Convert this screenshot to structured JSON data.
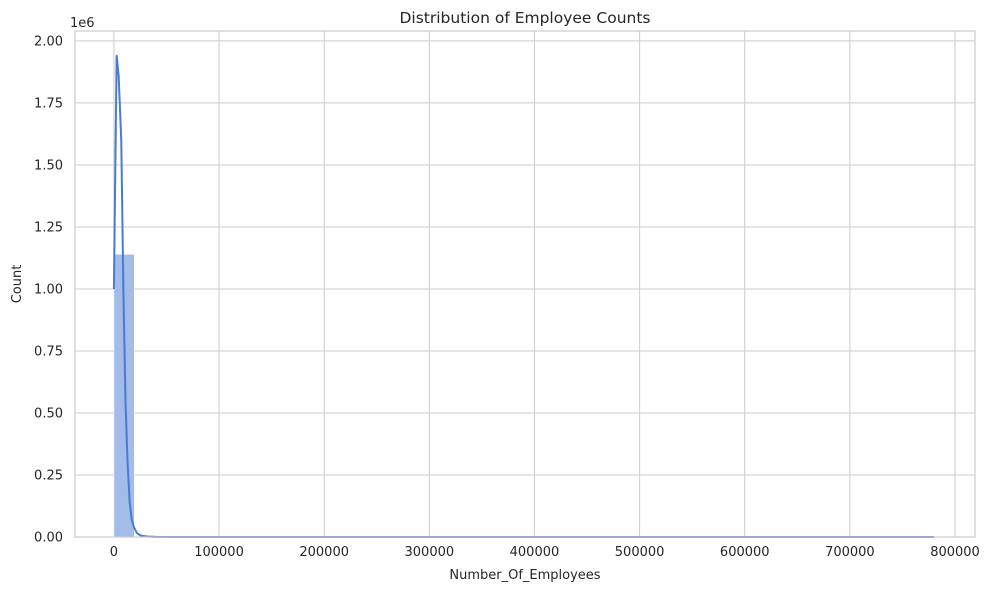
{
  "chart_data": {
    "type": "histogram",
    "title": "Distribution of Employee Counts",
    "xlabel": "Number_Of_Employees",
    "ylabel": "Count",
    "y_offset_text": "1e6",
    "xlim": [
      -37000,
      819000
    ],
    "ylim": [
      0,
      2.04
    ],
    "xticks": [
      0,
      100000,
      200000,
      300000,
      400000,
      500000,
      600000,
      700000,
      800000
    ],
    "xtick_labels": [
      "0",
      "100000",
      "200000",
      "300000",
      "400000",
      "500000",
      "600000",
      "700000",
      "800000"
    ],
    "yticks": [
      0,
      0.25,
      0.5,
      0.75,
      1.0,
      1.25,
      1.5,
      1.75,
      2.0
    ],
    "ytick_labels": [
      "0.00",
      "0.25",
      "0.50",
      "0.75",
      "1.00",
      "1.25",
      "1.50",
      "1.75",
      "2.00"
    ],
    "grid": true,
    "bar_color": "#a3bcea",
    "kde_color": "#4a7bd0",
    "bars": [
      {
        "x0": 0,
        "x1": 19500,
        "value": 1.14
      }
    ],
    "kde": {
      "x": [
        0,
        2600,
        4500,
        7000,
        9000,
        11000,
        13000,
        15000,
        17000,
        19000,
        22000,
        26000,
        32000,
        40000,
        60000,
        100000,
        200000,
        400000,
        600000,
        780000
      ],
      "y": [
        1.0,
        1.94,
        1.86,
        1.6,
        1.0,
        0.55,
        0.3,
        0.14,
        0.07,
        0.04,
        0.015,
        0.005,
        0.002,
        0.0005,
        0.0,
        0.0,
        0.0,
        0.0,
        0.0,
        0.0
      ]
    }
  }
}
